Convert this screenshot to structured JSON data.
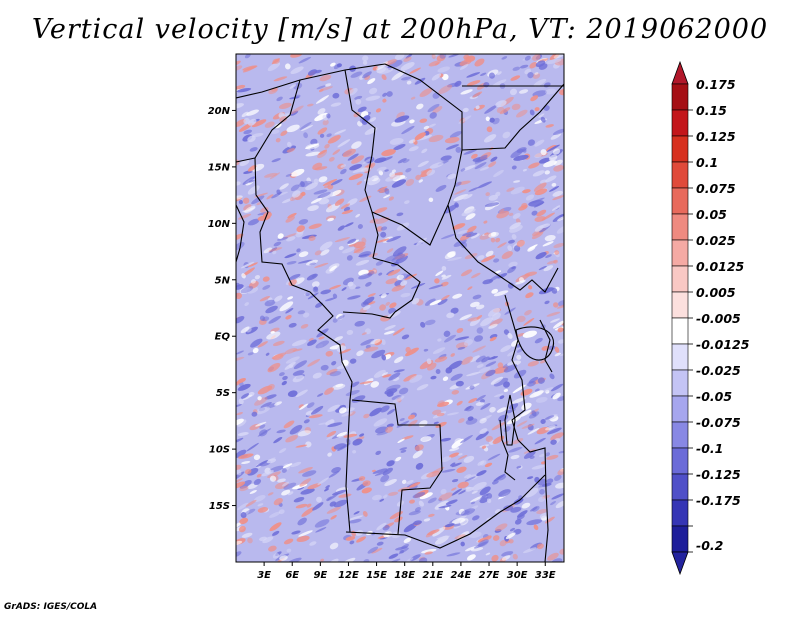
{
  "title": "Vertical velocity [m/s] at 200hPa, VT: 2019062000",
  "credit": "GrADS: IGES/COLA",
  "map": {
    "lon_range": [
      0,
      35
    ],
    "lat_range": [
      -20,
      25
    ],
    "lon_ticks": [
      {
        "value": 3,
        "label": "3E"
      },
      {
        "value": 6,
        "label": "6E"
      },
      {
        "value": 9,
        "label": "9E"
      },
      {
        "value": 12,
        "label": "12E"
      },
      {
        "value": 15,
        "label": "15E"
      },
      {
        "value": 18,
        "label": "18E"
      },
      {
        "value": 21,
        "label": "21E"
      },
      {
        "value": 24,
        "label": "24E"
      },
      {
        "value": 27,
        "label": "27E"
      },
      {
        "value": 30,
        "label": "30E"
      },
      {
        "value": 33,
        "label": "33E"
      }
    ],
    "lat_ticks": [
      {
        "value": 20,
        "label": "20N"
      },
      {
        "value": 15,
        "label": "15N"
      },
      {
        "value": 10,
        "label": "10N"
      },
      {
        "value": 5,
        "label": "5N"
      },
      {
        "value": 0,
        "label": "EQ"
      },
      {
        "value": -5,
        "label": "5S"
      },
      {
        "value": -10,
        "label": "10S"
      },
      {
        "value": -15,
        "label": "15S"
      }
    ]
  },
  "colorbar": {
    "levels": [
      {
        "label": "0.175",
        "color": "#a50f15"
      },
      {
        "label": "0.15",
        "color": "#c3161b"
      },
      {
        "label": "0.125",
        "color": "#d7301f"
      },
      {
        "label": "0.1",
        "color": "#e04a3a"
      },
      {
        "label": "0.075",
        "color": "#e86a5c"
      },
      {
        "label": "0.05",
        "color": "#ef8a80"
      },
      {
        "label": "0.025",
        "color": "#f5aaa4"
      },
      {
        "label": "0.0125",
        "color": "#f9c8c4"
      },
      {
        "label": "0.005",
        "color": "#fce0de"
      },
      {
        "label": "-0.005",
        "color": "#ffffff"
      },
      {
        "label": "-0.0125",
        "color": "#e0e0fb"
      },
      {
        "label": "-0.025",
        "color": "#c4c4f5"
      },
      {
        "label": "-0.05",
        "color": "#a6a6ee"
      },
      {
        "label": "-0.075",
        "color": "#8888e4"
      },
      {
        "label": "-0.1",
        "color": "#6b6bd8"
      },
      {
        "label": "-0.125",
        "color": "#5050c8"
      },
      {
        "label": "-0.175",
        "color": "#3535b5"
      },
      {
        "label": "-0.2",
        "color": "#1e1e9a"
      }
    ],
    "top_color": "#b2182b",
    "bottom_color": "#23239e"
  },
  "colors": {
    "field_base": "#b9b9ee",
    "upward": "#ef8f88",
    "downward": "#6e6ed8",
    "border": "#000000"
  }
}
